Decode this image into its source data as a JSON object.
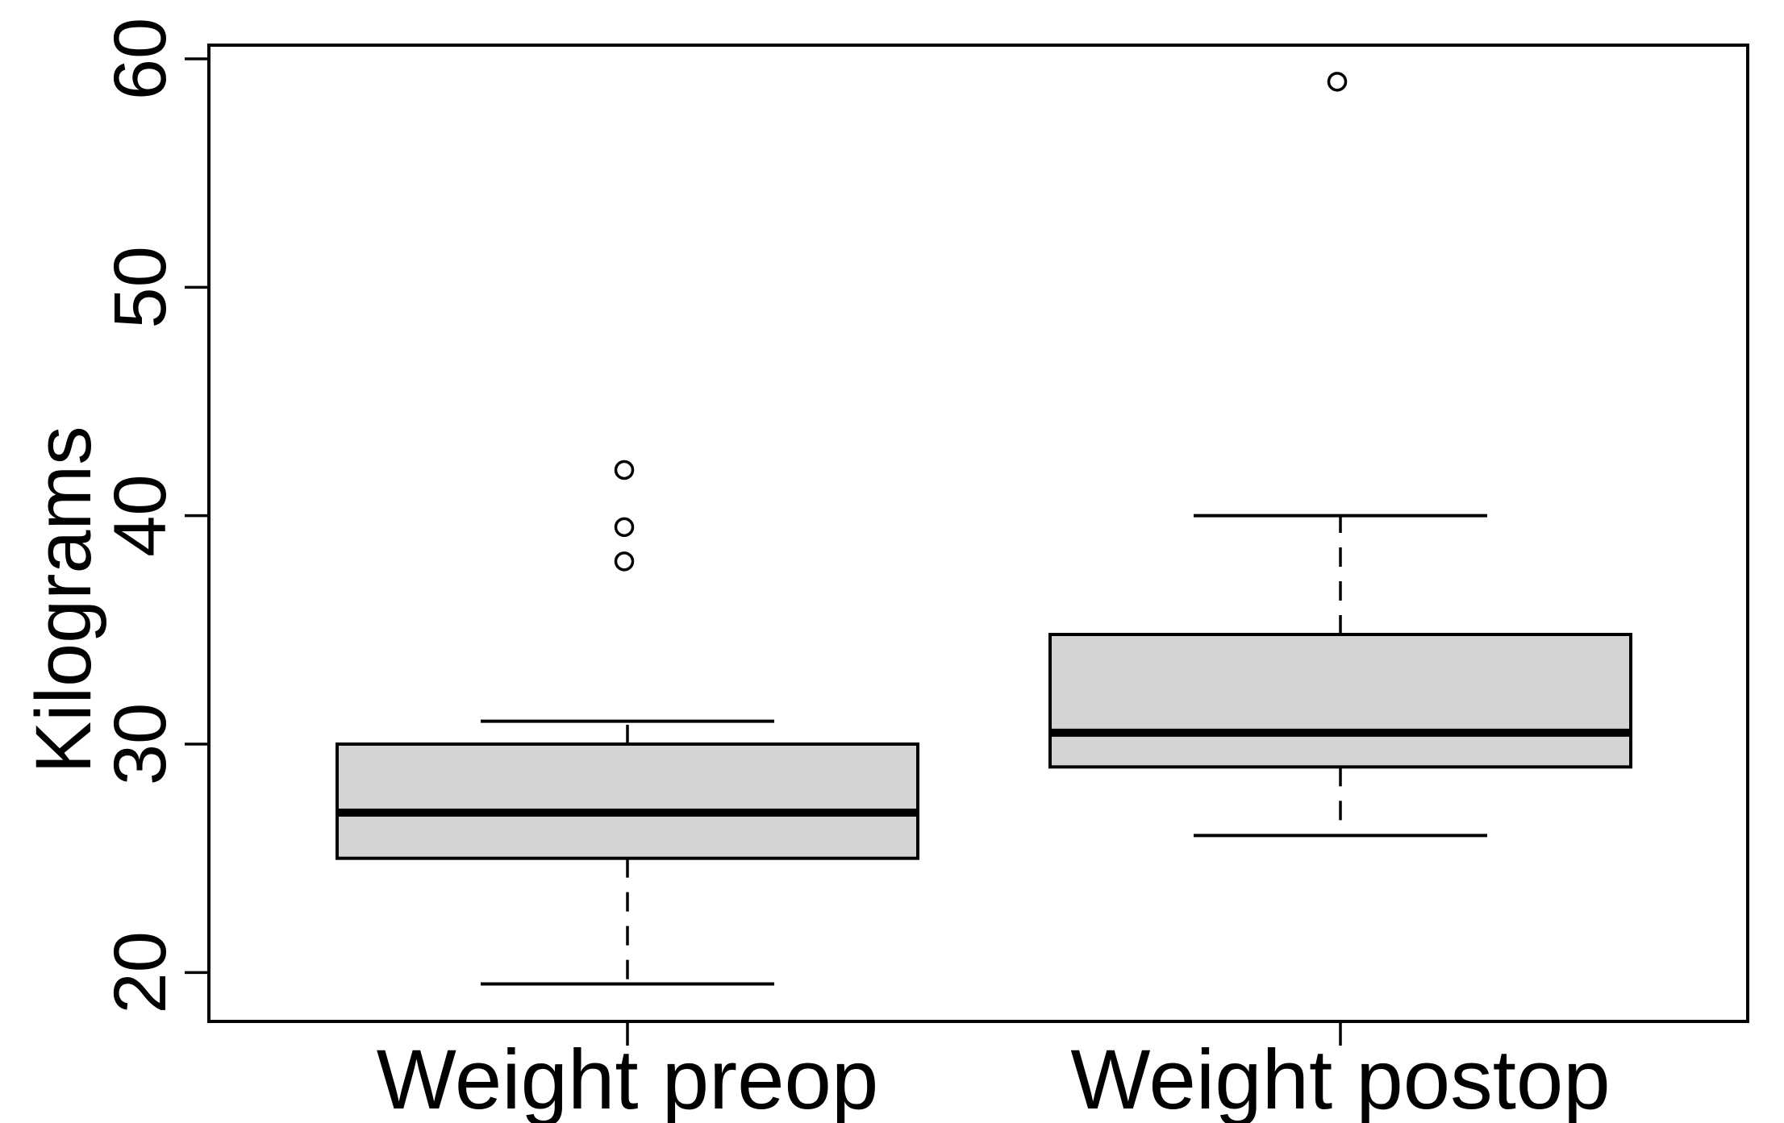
{
  "chart_data": {
    "type": "boxplot",
    "title": "",
    "xlabel": "",
    "ylabel": "Kilograms",
    "categories": [
      "Weight preop",
      "Weight postop"
    ],
    "y_axis": {
      "min": 17.9,
      "max": 60.6,
      "ticks": [
        20,
        30,
        40,
        50,
        60
      ],
      "unit": "kg"
    },
    "series": [
      {
        "name": "Weight preop",
        "lower_whisker": 19.5,
        "q1": 25,
        "median": 27,
        "q3": 30,
        "upper_whisker": 31,
        "outliers": [
          38,
          39.5,
          42
        ]
      },
      {
        "name": "Weight postop",
        "lower_whisker": 26,
        "q1": 29,
        "median": 30.5,
        "q3": 34.8,
        "upper_whisker": 40,
        "outliers": [
          59
        ]
      }
    ],
    "style": {
      "box_fill": "#d4d4d4",
      "line_color": "#000000",
      "background": "#ffffff",
      "grid": false,
      "legend": false
    }
  }
}
